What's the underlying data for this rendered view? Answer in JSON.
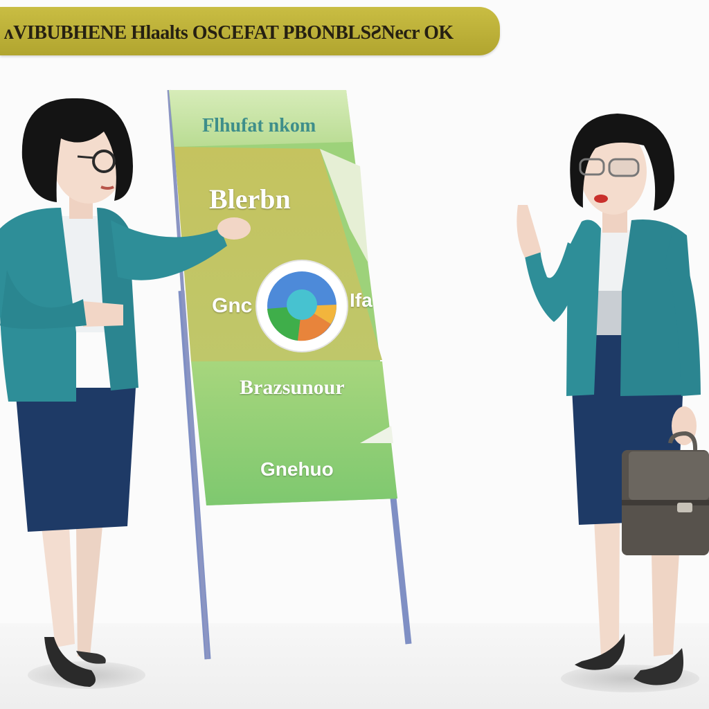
{
  "banner": {
    "title": "ᴧVIBUBHENE Hlaalts OSCEFAT PBONBLSƧNecr OK"
  },
  "board": {
    "header": "Flhufat nkom",
    "heading": "Blerbn",
    "chart_left": "Gnc",
    "chart_right": "Ifa",
    "section": "Brazsunour",
    "footer": "Gnehuo"
  },
  "colors": {
    "banner": "#bfb23a",
    "board_top": "#c9e3a8",
    "board_mid": "#c6c868",
    "board_bottom": "#8fce7a",
    "stand": "#7f8fc4",
    "jacket": "#2e8e98",
    "skirt": "#1f3b66"
  },
  "icons": [
    "pie-chart-icon",
    "briefcase-icon"
  ]
}
